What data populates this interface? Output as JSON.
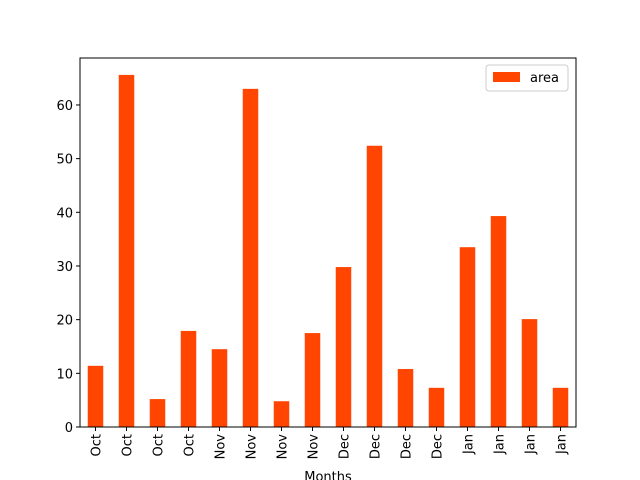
{
  "chart_data": {
    "type": "bar",
    "x_label": "Months",
    "categories": [
      "Oct",
      "Oct",
      "Oct",
      "Oct",
      "Nov",
      "Nov",
      "Nov",
      "Nov",
      "Dec",
      "Dec",
      "Dec",
      "Dec",
      "Jan",
      "Jan",
      "Jan",
      "Jan"
    ],
    "series": [
      {
        "name": "area",
        "color": "#ff4500",
        "values": [
          11.4,
          65.6,
          5.2,
          17.9,
          14.5,
          63.0,
          4.8,
          17.5,
          29.8,
          52.4,
          10.8,
          7.3,
          33.5,
          39.3,
          20.1,
          7.3
        ]
      }
    ],
    "ylim": [
      0,
      68.75
    ],
    "yticks": [
      0,
      10,
      20,
      30,
      40,
      50,
      60
    ],
    "legend": "upper right"
  }
}
